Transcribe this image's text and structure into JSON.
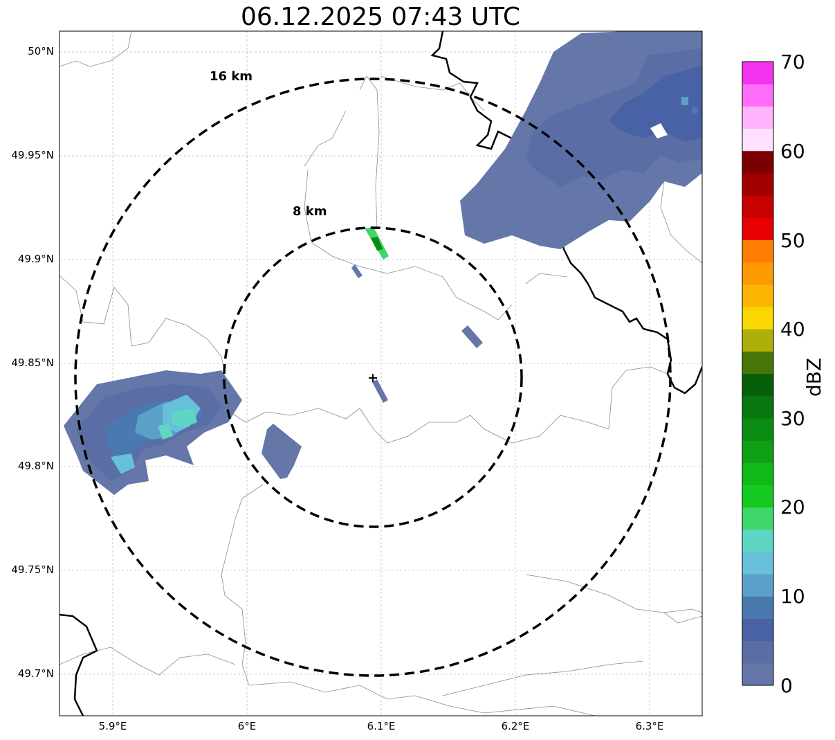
{
  "title": "06.12.2025 07:43 UTC",
  "map": {
    "lon_range": [
      5.86,
      6.34
    ],
    "lat_range": [
      49.68,
      50.01
    ],
    "grid": true,
    "coastlines_borders": true
  },
  "axes": {
    "lat_labels": [
      "50°N",
      "49.95°N",
      "49.9°N",
      "49.85°N",
      "49.8°N",
      "49.75°N",
      "49.7°N"
    ],
    "lon_labels": [
      "5.9°E",
      "6°E",
      "6.1°E",
      "6.2°E",
      "6.3°E"
    ]
  },
  "radar_site": {
    "lon": 6.095,
    "lat": 49.843,
    "marker": "plus-icon"
  },
  "range_rings": [
    {
      "label": "8 km",
      "radius_km": 8
    },
    {
      "label": "16 km",
      "radius_km": 16
    }
  ],
  "colorbar": {
    "label": "dBZ",
    "ticks": [
      "0",
      "10",
      "20",
      "30",
      "40",
      "50",
      "60",
      "70"
    ],
    "colors": [
      "#6577a8",
      "#5a6ea5",
      "#4962a5",
      "#4a79b0",
      "#5ba0c8",
      "#66c0dc",
      "#5fd6c4",
      "#3fd66a",
      "#14c91f",
      "#10b818",
      "#0e9f15",
      "#0a8b12",
      "#08770f",
      "#085f0a",
      "#487708",
      "#aeb00a",
      "#fad700",
      "#fdb503",
      "#ff9902",
      "#ff7d00",
      "#e60000",
      "#c80000",
      "#a10000",
      "#7d0000",
      "#ffe0ff",
      "#ffb3fa",
      "#ff6efa",
      "#f233f0"
    ]
  },
  "precip_cells": [
    {
      "name": "northeast-cluster",
      "dbz_range": [
        0,
        10
      ]
    },
    {
      "name": "west-cluster",
      "dbz_range": [
        0,
        18
      ]
    },
    {
      "name": "north-streak",
      "dbz_range": [
        18,
        26
      ]
    },
    {
      "name": "small-echoes",
      "dbz_range": [
        0,
        6
      ]
    }
  ]
}
